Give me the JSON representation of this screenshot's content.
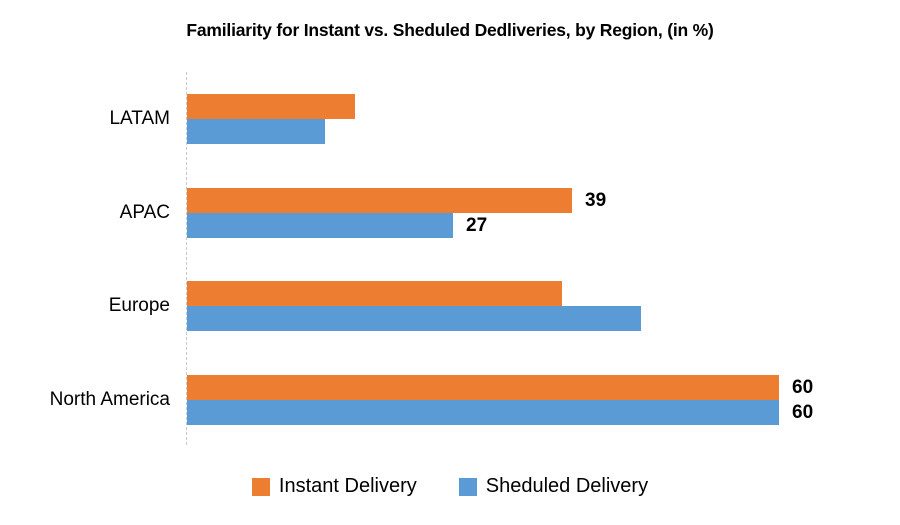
{
  "chart_data": {
    "type": "bar",
    "orientation": "horizontal",
    "title": "Familiarity for Instant vs. Sheduled Dedliveries, by Region, (in %)",
    "categories": [
      "LATAM",
      "APAC",
      "Europe",
      "North America"
    ],
    "series": [
      {
        "name": "Instant Delivery",
        "color": "#ED7D31",
        "values": [
          17,
          39,
          38,
          60
        ],
        "data_labels": [
          "",
          "39",
          "",
          "60"
        ]
      },
      {
        "name": "Sheduled Delivery",
        "color": "#5B9BD5",
        "values": [
          14,
          27,
          46,
          60
        ],
        "data_labels": [
          "",
          "27",
          "",
          "60"
        ]
      }
    ],
    "xlim": [
      0,
      60
    ],
    "xlabel": "",
    "ylabel": "",
    "grid": false,
    "legend_position": "bottom",
    "axis_line_color": "#c9c9c9",
    "data_label_color": "#000000"
  }
}
